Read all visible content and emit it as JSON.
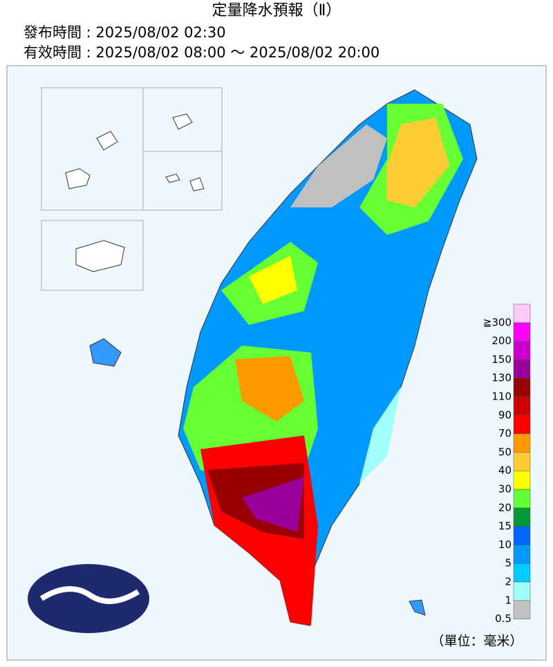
{
  "header": {
    "title": "定量降水預報（Ⅱ）",
    "issued": "發布時間 : 2025/08/02 02:30",
    "valid": "有效時間 : 2025/08/02 08:00 ～ 2025/08/02 20:00"
  },
  "legend": {
    "items": [
      {
        "label": "≧300",
        "color": "#fdc9f6"
      },
      {
        "label": "200",
        "color": "#ff00ff"
      },
      {
        "label": "150",
        "color": "#cc00cc"
      },
      {
        "label": "130",
        "color": "#990099"
      },
      {
        "label": "110",
        "color": "#990000"
      },
      {
        "label": "90",
        "color": "#cc0000"
      },
      {
        "label": "70",
        "color": "#ff0000"
      },
      {
        "label": "50",
        "color": "#ff9900"
      },
      {
        "label": "40",
        "color": "#ffcc33"
      },
      {
        "label": "30",
        "color": "#ffff00"
      },
      {
        "label": "20",
        "color": "#66ff33"
      },
      {
        "label": "15",
        "color": "#009933"
      },
      {
        "label": "10",
        "color": "#0066ff"
      },
      {
        "label": "5",
        "color": "#0099ff"
      },
      {
        "label": "2",
        "color": "#00ccff"
      },
      {
        "label": "1",
        "color": "#a0fffa"
      },
      {
        "label": "0.5",
        "color": "#c0c0c0"
      }
    ],
    "unit": "（單位：毫米）"
  }
}
